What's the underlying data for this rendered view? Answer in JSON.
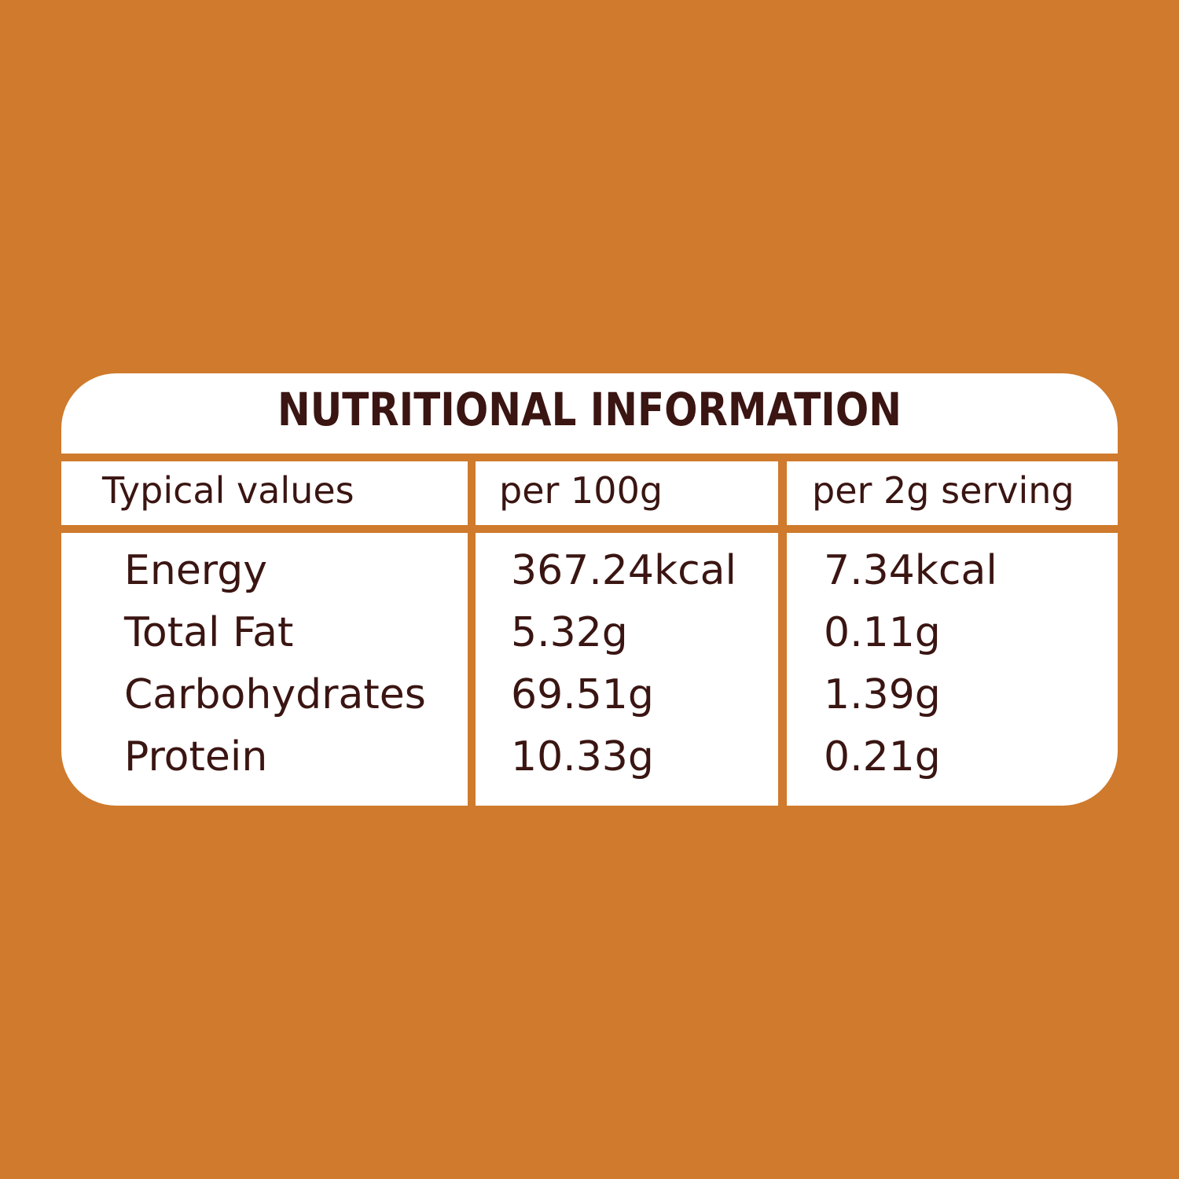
{
  "title": "NUTRITIONAL INFORMATION",
  "table": {
    "header": [
      "Typical values",
      "per 100g",
      "per 2g serving"
    ],
    "rows": [
      [
        "Energy",
        "367.24kcal",
        "7.34kcal"
      ],
      [
        "Total Fat",
        "5.32g",
        "0.11g"
      ],
      [
        "Carbohydrates",
        "69.51g",
        "1.39g"
      ],
      [
        "Protein",
        "10.33g",
        "0.21g"
      ]
    ]
  }
}
